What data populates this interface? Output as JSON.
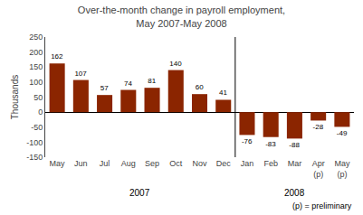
{
  "chart_data": {
    "type": "bar",
    "title": "Over-the-month change in payroll employment,\nMay 2007-May 2008",
    "categories": [
      "May",
      "Jun",
      "Jul",
      "Aug",
      "Sep",
      "Oct",
      "Nov",
      "Dec",
      "Jan",
      "Feb",
      "Mar",
      "Apr\n(p)",
      "May\n(p)"
    ],
    "values": [
      162,
      107,
      57,
      74,
      81,
      140,
      60,
      41,
      -76,
      -83,
      -88,
      -28,
      -49
    ],
    "color": "#8B2500",
    "ylabel": "Thousands",
    "ylim": [
      -150,
      250
    ],
    "yticks": [
      -150,
      -100,
      -50,
      0,
      50,
      100,
      150,
      200,
      250
    ],
    "grid": false,
    "data_labels": true,
    "annotations": [
      {
        "text": "2007",
        "span": [
          0,
          7
        ]
      },
      {
        "text": "2008",
        "span": [
          8,
          12
        ]
      },
      {
        "text": "(p) = preliminary"
      }
    ]
  }
}
